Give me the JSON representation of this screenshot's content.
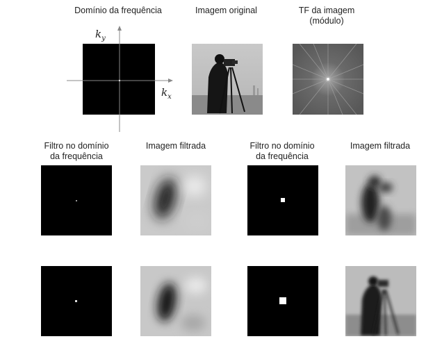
{
  "labels": {
    "freq_domain": "Domínio da frequência",
    "original": "Imagem original",
    "ft_line1": "TF da imagem",
    "ft_line2": "(módulo)",
    "filter_line1": "Filtro no domínio",
    "filter_line2": "da frequência",
    "filtered": "Imagem filtrada"
  },
  "axes": {
    "ky": "k",
    "ky_sub": "y",
    "kx": "k",
    "kx_sub": "x"
  },
  "colors": {
    "background": "#ffffff",
    "filter_background": "#000000",
    "filter_passband": "#ffffff",
    "axis": "#888888"
  }
}
